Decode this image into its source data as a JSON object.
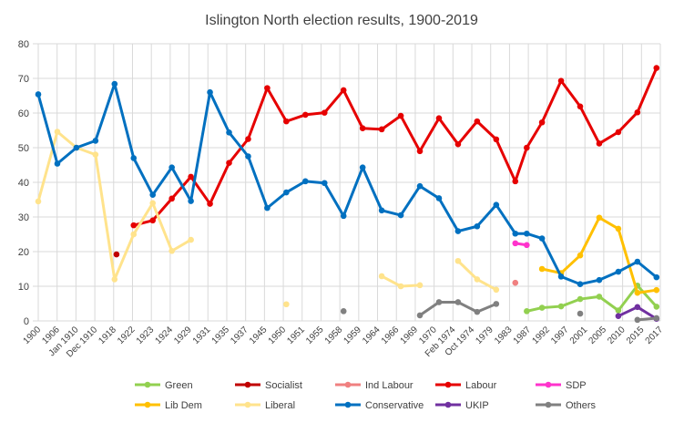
{
  "chart_data": {
    "type": "line",
    "title": "Islington North election results, 1900-2019",
    "xlabel": "",
    "ylabel": "",
    "ylim": [
      0,
      80
    ],
    "yticks": [
      0,
      10,
      20,
      30,
      40,
      50,
      60,
      70,
      80
    ],
    "grid": true,
    "legend_position": "bottom",
    "categories": [
      "1900",
      "1906",
      "Jan 1910",
      "Dec 1910",
      "1918",
      "1922",
      "1923",
      "1924",
      "1929",
      "1931",
      "1935",
      "1937",
      "1945",
      "1950",
      "1951",
      "1955",
      "1958",
      "1959",
      "1964",
      "1966",
      "1969",
      "1970",
      "Feb 1974",
      "Oct 1974",
      "1979",
      "1983",
      "1987",
      "1992",
      "1997",
      "2001",
      "2005",
      "2010",
      "2015",
      "2017"
    ],
    "x_positions": [
      0,
      1,
      2,
      3,
      4,
      5,
      6,
      7,
      8,
      9,
      10,
      11,
      12,
      13,
      14,
      15,
      16,
      17,
      18,
      19,
      20,
      21,
      22,
      23,
      24,
      25,
      25.6,
      26.4,
      27.4,
      28.4,
      29.4,
      30.4,
      31.4,
      32.4
    ],
    "label_slots": [
      0,
      1,
      2,
      3,
      4,
      5,
      6,
      7,
      8,
      9,
      10,
      11,
      12,
      13,
      14,
      15,
      16,
      17,
      18,
      19,
      20,
      21,
      22,
      23,
      24,
      25,
      26,
      27,
      28,
      29,
      30,
      31,
      32,
      33
    ],
    "x_range": [
      0,
      32.6
    ],
    "series": [
      {
        "name": "Green",
        "color": "#92d050",
        "marker": true,
        "points": [
          [
            25.6,
            2.8
          ],
          [
            26.4,
            3.8
          ],
          [
            27.4,
            4.2
          ],
          [
            28.4,
            6.3
          ],
          [
            29.4,
            7.0
          ],
          [
            30.4,
            3.0
          ],
          [
            31.4,
            10.2
          ],
          [
            32.4,
            4.1
          ]
        ]
      },
      {
        "name": "Socialist",
        "color": "#c00000",
        "marker": true,
        "points": [
          [
            4.1,
            19.2
          ]
        ]
      },
      {
        "name": "Ind Labour",
        "color": "#f08080",
        "marker": true,
        "points": [
          [
            25,
            11.0
          ]
        ]
      },
      {
        "name": "Labour",
        "color": "#e60000",
        "marker": true,
        "points": [
          [
            5,
            27.6
          ],
          [
            6,
            29.0
          ],
          [
            7,
            35.3
          ],
          [
            8,
            41.6
          ],
          [
            9,
            33.8
          ],
          [
            10,
            45.6
          ],
          [
            11,
            52.5
          ],
          [
            12,
            67.2
          ],
          [
            13,
            57.6
          ],
          [
            14,
            59.5
          ],
          [
            15,
            60.1
          ],
          [
            16,
            66.6
          ],
          [
            17,
            55.6
          ],
          [
            18,
            55.3
          ],
          [
            19,
            59.2
          ],
          [
            20,
            49.0
          ],
          [
            21,
            58.5
          ],
          [
            22,
            51.0
          ],
          [
            23,
            57.6
          ],
          [
            24,
            52.4
          ],
          [
            25,
            40.3
          ],
          [
            25.6,
            50.0
          ],
          [
            26.4,
            57.3
          ],
          [
            27.4,
            69.3
          ],
          [
            28.4,
            61.9
          ],
          [
            29.4,
            51.2
          ],
          [
            30.4,
            54.5
          ],
          [
            31.4,
            60.2
          ],
          [
            32.4,
            73.0
          ]
        ]
      },
      {
        "name": "SDP",
        "color": "#ff33cc",
        "marker": true,
        "points": [
          [
            25,
            22.4
          ],
          [
            25.6,
            21.9
          ]
        ]
      },
      {
        "name": "Lib Dem",
        "color": "#ffc000",
        "marker": true,
        "points": [
          [
            26.4,
            15.0
          ],
          [
            27.4,
            13.8
          ],
          [
            28.4,
            18.9
          ],
          [
            29.4,
            29.8
          ],
          [
            30.4,
            26.6
          ],
          [
            31.4,
            8.1
          ],
          [
            32.4,
            8.9
          ]
        ]
      },
      {
        "name": "Liberal",
        "color": "#ffe38c",
        "marker": true,
        "points": [
          [
            0,
            34.5
          ],
          [
            1,
            54.6
          ],
          [
            2,
            50.0
          ],
          [
            3,
            48.0
          ],
          [
            4,
            12.0
          ],
          [
            5,
            25.0
          ],
          [
            6,
            34.0
          ],
          [
            7,
            20.2
          ],
          [
            8,
            23.4
          ],
          [
            13,
            4.8
          ],
          [
            18,
            12.9
          ],
          [
            19,
            10.0
          ],
          [
            20,
            10.3
          ],
          [
            22,
            17.3
          ],
          [
            23,
            12.0
          ],
          [
            24,
            9.0
          ]
        ]
      },
      {
        "name": "Conservative",
        "color": "#0070c0",
        "marker": true,
        "points": [
          [
            0,
            65.4
          ],
          [
            1,
            45.4
          ],
          [
            2,
            50.0
          ],
          [
            3,
            52.0
          ],
          [
            4,
            68.4
          ],
          [
            5,
            47.0
          ],
          [
            6,
            36.4
          ],
          [
            7,
            44.3
          ],
          [
            8,
            34.6
          ],
          [
            9,
            66.0
          ],
          [
            10,
            54.4
          ],
          [
            11,
            47.5
          ],
          [
            12,
            32.6
          ],
          [
            13,
            37.1
          ],
          [
            14,
            40.3
          ],
          [
            15,
            39.8
          ],
          [
            16,
            30.3
          ],
          [
            17,
            44.3
          ],
          [
            18,
            31.9
          ],
          [
            19,
            30.5
          ],
          [
            20,
            38.9
          ],
          [
            21,
            35.4
          ],
          [
            22,
            25.9
          ],
          [
            23,
            27.3
          ],
          [
            24,
            33.5
          ],
          [
            25,
            25.2
          ],
          [
            25.6,
            25.2
          ],
          [
            26.4,
            23.8
          ],
          [
            27.4,
            12.8
          ],
          [
            28.4,
            10.6
          ],
          [
            29.4,
            11.8
          ],
          [
            30.4,
            14.2
          ],
          [
            31.4,
            17.1
          ],
          [
            32.4,
            12.6
          ]
        ]
      },
      {
        "name": "UKIP",
        "color": "#7030a0",
        "marker": true,
        "points": [
          [
            30.4,
            1.4
          ],
          [
            31.4,
            4.0
          ],
          [
            32.4,
            0.6
          ]
        ]
      },
      {
        "name": "Others",
        "color": "#808080",
        "marker": true,
        "points": [
          [
            16,
            2.8
          ],
          [
            20,
            1.6
          ],
          [
            21,
            5.4
          ],
          [
            22,
            5.4
          ],
          [
            23,
            2.6
          ],
          [
            24,
            4.9
          ],
          [
            28.4,
            2.1
          ],
          [
            31.4,
            0.3
          ],
          [
            32.4,
            0.8
          ]
        ]
      }
    ],
    "legend_order": [
      "Green",
      "Socialist",
      "Ind Labour",
      "Labour",
      "SDP",
      "Lib Dem",
      "Liberal",
      "Conservative",
      "UKIP",
      "Others"
    ]
  }
}
